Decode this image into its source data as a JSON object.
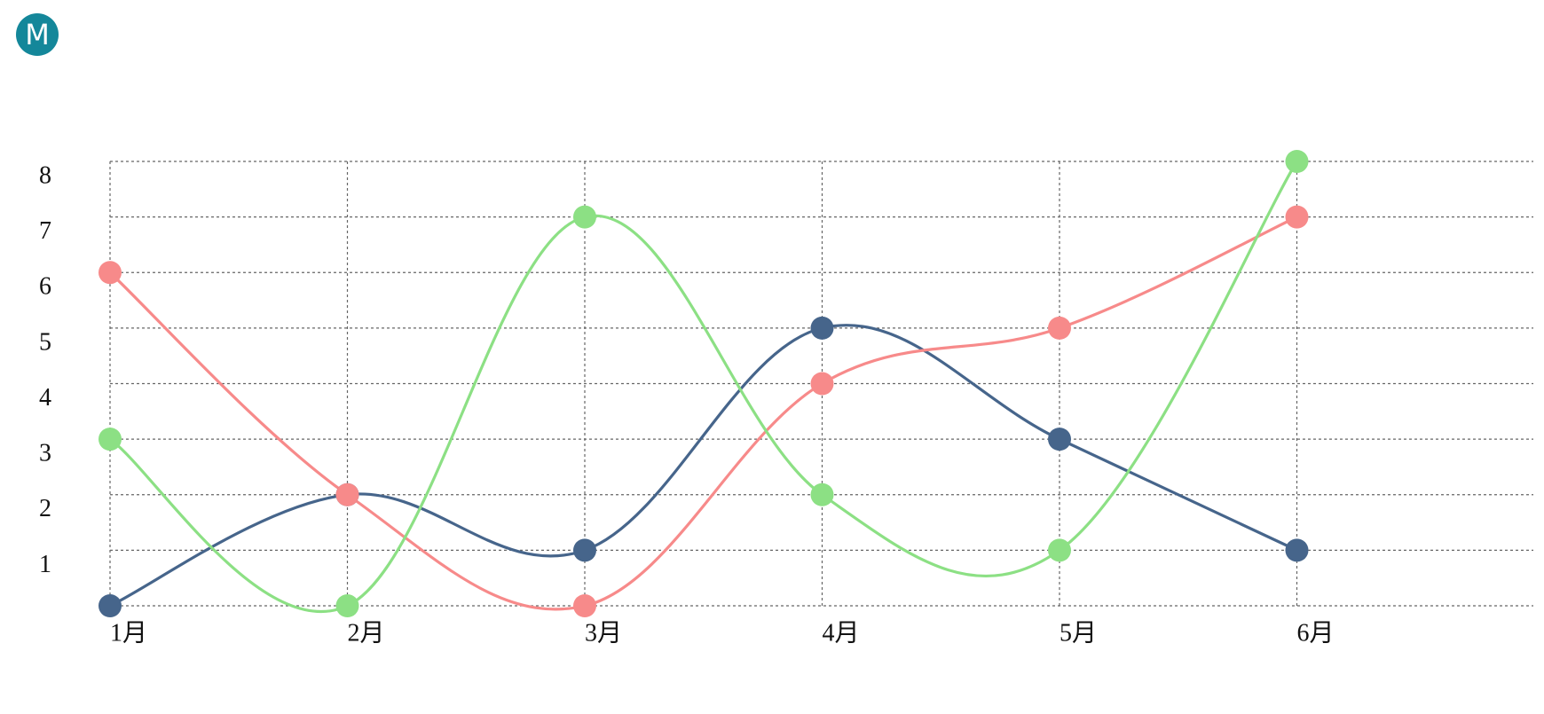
{
  "logo_text": "M",
  "chart_data": {
    "type": "line",
    "categories": [
      "1月",
      "2月",
      "3月",
      "4月",
      "5月",
      "6月"
    ],
    "series": [
      {
        "color": "#46658b",
        "values": [
          0,
          2,
          1,
          5,
          3,
          1
        ]
      },
      {
        "color": "#f78a8a",
        "values": [
          6,
          2,
          0,
          4,
          5,
          7
        ]
      },
      {
        "color": "#8ce084",
        "values": [
          3,
          0,
          7,
          2,
          1,
          8
        ]
      }
    ],
    "ylim": [
      0,
      8
    ],
    "yticks": [
      1,
      2,
      3,
      4,
      5,
      6,
      7,
      8
    ],
    "grid": true,
    "smooth": true
  }
}
